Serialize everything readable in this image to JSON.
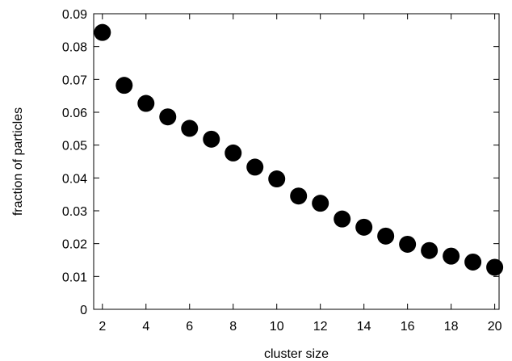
{
  "chart_data": {
    "type": "scatter",
    "title": "",
    "xlabel": "cluster size",
    "ylabel": "fraction of particles",
    "xlim": [
      1.6,
      20.2
    ],
    "ylim": [
      0,
      0.09
    ],
    "x_ticks": [
      {
        "value": 2,
        "label": "2"
      },
      {
        "value": 4,
        "label": "4"
      },
      {
        "value": 6,
        "label": "6"
      },
      {
        "value": 8,
        "label": "8"
      },
      {
        "value": 10,
        "label": "10"
      },
      {
        "value": 12,
        "label": "12"
      },
      {
        "value": 14,
        "label": "14"
      },
      {
        "value": 16,
        "label": "16"
      },
      {
        "value": 18,
        "label": "18"
      },
      {
        "value": 20,
        "label": "20"
      }
    ],
    "y_ticks": [
      {
        "value": 0,
        "label": "0"
      },
      {
        "value": 0.01,
        "label": "0.01"
      },
      {
        "value": 0.02,
        "label": "0.02"
      },
      {
        "value": 0.03,
        "label": "0.03"
      },
      {
        "value": 0.04,
        "label": "0.04"
      },
      {
        "value": 0.05,
        "label": "0.05"
      },
      {
        "value": 0.06,
        "label": "0.06"
      },
      {
        "value": 0.07,
        "label": "0.07"
      },
      {
        "value": 0.08,
        "label": "0.08"
      },
      {
        "value": 0.09,
        "label": "0.09"
      }
    ],
    "grid": false,
    "legend": "none",
    "marker_color": "#000000",
    "series": [
      {
        "x": [
          2,
          3,
          4,
          5,
          6,
          7,
          8,
          9,
          10,
          11,
          12,
          13,
          14,
          15,
          16,
          17,
          18,
          19,
          20
        ],
        "y": [
          0.0843,
          0.0682,
          0.0627,
          0.0586,
          0.0551,
          0.0518,
          0.0476,
          0.0433,
          0.0397,
          0.0345,
          0.0323,
          0.0275,
          0.025,
          0.0223,
          0.0198,
          0.0179,
          0.0162,
          0.0144,
          0.0128
        ]
      }
    ]
  }
}
